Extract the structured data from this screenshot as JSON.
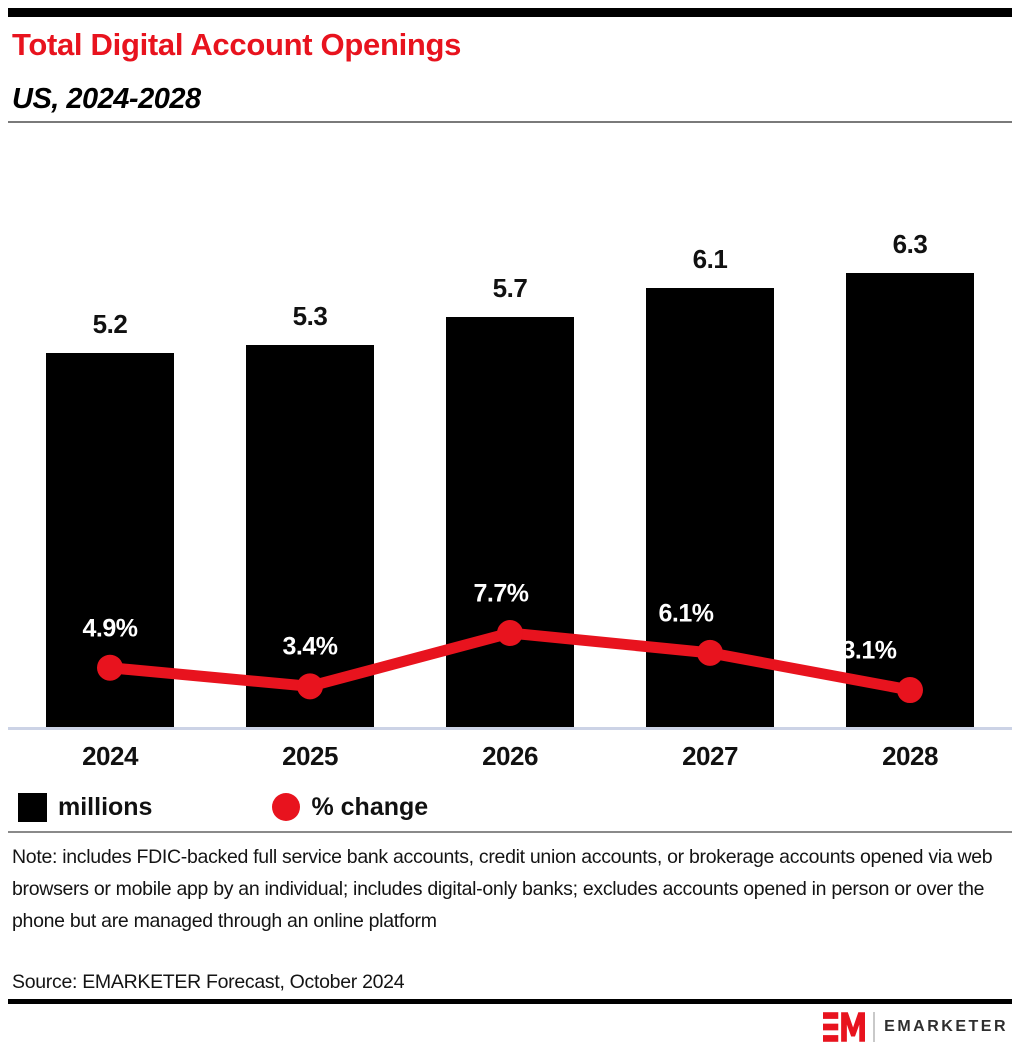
{
  "header": {
    "title": "Total Digital Account Openings",
    "subtitle": "US, 2024-2028"
  },
  "chart_data": {
    "type": "bar",
    "categories": [
      "2024",
      "2025",
      "2026",
      "2027",
      "2028"
    ],
    "series": [
      {
        "name": "millions",
        "type": "bar",
        "values": [
          5.2,
          5.3,
          5.7,
          6.1,
          6.3
        ],
        "labels": [
          "5.2",
          "5.3",
          "5.7",
          "6.1",
          "6.3"
        ],
        "color": "#000000"
      },
      {
        "name": "% change",
        "type": "line",
        "values": [
          4.9,
          3.4,
          7.7,
          6.1,
          3.1
        ],
        "labels": [
          "4.9%",
          "3.4%",
          "7.7%",
          "6.1%",
          "3.1%"
        ],
        "color": "#e8131e"
      }
    ],
    "title": "Total Digital Account Openings",
    "subtitle": "US, 2024-2028",
    "xlabel": "",
    "ylabel": "",
    "grid": false,
    "legend_position": "bottom",
    "legend": [
      {
        "label": "millions",
        "swatch": "square",
        "color": "#000000"
      },
      {
        "label": "% change",
        "swatch": "circle",
        "color": "#e8131e"
      }
    ]
  },
  "legend": {
    "millions_label": "millions",
    "pct_change_label": "% change"
  },
  "note": "Note: includes FDIC-backed full service bank accounts, credit union accounts, or brokerage accounts opened via web browsers or mobile app by an individual; includes digital-only banks; excludes accounts opened in person or over the phone but are managed through an online platform",
  "source": "Source: EMARKETER Forecast, October 2024",
  "footer": {
    "brand": "EMARKETER"
  },
  "colors": {
    "accent_red": "#e8131e",
    "bar_black": "#000000",
    "axis_line": "#ccd3e6",
    "divider_gray": "#7a7a7a"
  }
}
